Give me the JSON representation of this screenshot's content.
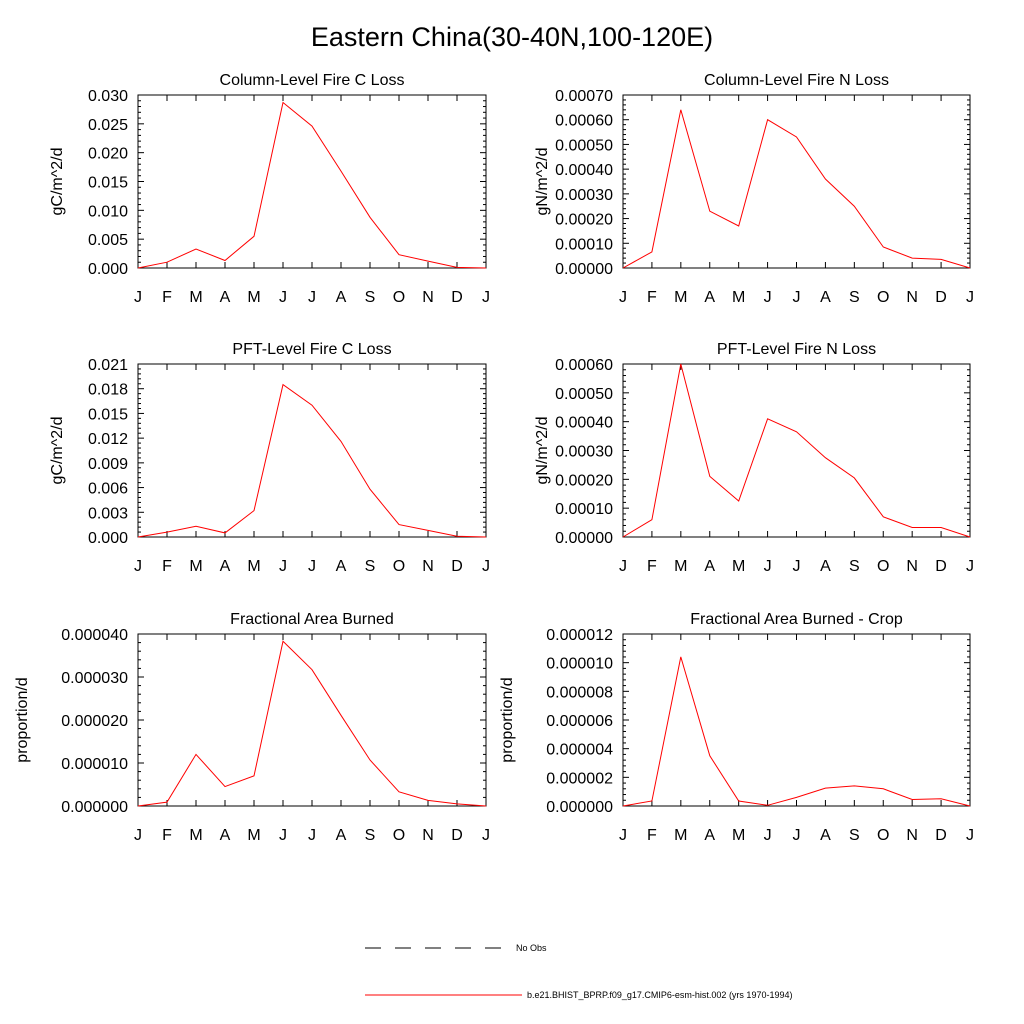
{
  "title": "Eastern China(30-40N,100-120E)",
  "colors": {
    "series": "#ff0000",
    "axis": "#000000",
    "obs": "#000000"
  },
  "legend": {
    "obs_label": "No Obs",
    "model_label": "b.e21.BHIST_BPRP.f09_g17.CMIP6-esm-hist.002 (yrs 1970-1994)"
  },
  "chart_data": [
    {
      "type": "line",
      "title": "Column-Level Fire C Loss",
      "ylabel": "gC/m^2/d",
      "xlabel": "",
      "categories": [
        "J",
        "F",
        "M",
        "A",
        "M",
        "J",
        "J",
        "A",
        "S",
        "O",
        "N",
        "D",
        "J"
      ],
      "yticks": [
        "0.000",
        "0.005",
        "0.010",
        "0.015",
        "0.020",
        "0.025",
        "0.030"
      ],
      "ylim": [
        0,
        0.03
      ],
      "values": [
        0.0,
        0.001,
        0.0033,
        0.0013,
        0.0055,
        0.0287,
        0.0246,
        0.0168,
        0.0088,
        0.0023,
        0.0012,
        0.0001,
        0.0
      ]
    },
    {
      "type": "line",
      "title": "Column-Level Fire N Loss",
      "ylabel": "gN/m^2/d",
      "xlabel": "",
      "categories": [
        "J",
        "F",
        "M",
        "A",
        "M",
        "J",
        "J",
        "A",
        "S",
        "O",
        "N",
        "D",
        "J"
      ],
      "yticks": [
        "0.00000",
        "0.00010",
        "0.00020",
        "0.00030",
        "0.00040",
        "0.00050",
        "0.00060",
        "0.00070"
      ],
      "ylim": [
        0,
        0.0007
      ],
      "values": [
        0.0,
        6.5e-05,
        0.00064,
        0.00023,
        0.00017,
        0.0006,
        0.00053,
        0.00036,
        0.00025,
        8.5e-05,
        4e-05,
        3.5e-05,
        0.0
      ]
    },
    {
      "type": "line",
      "title": "PFT-Level Fire C Loss",
      "ylabel": "gC/m^2/d",
      "xlabel": "",
      "categories": [
        "J",
        "F",
        "M",
        "A",
        "M",
        "J",
        "J",
        "A",
        "S",
        "O",
        "N",
        "D",
        "J"
      ],
      "yticks": [
        "0.000",
        "0.003",
        "0.006",
        "0.009",
        "0.012",
        "0.015",
        "0.018",
        "0.021"
      ],
      "ylim": [
        0,
        0.021
      ],
      "values": [
        0.0,
        0.0006,
        0.0013,
        0.0005,
        0.0032,
        0.0185,
        0.016,
        0.0116,
        0.0058,
        0.0015,
        0.0008,
        0.0001,
        0.0
      ]
    },
    {
      "type": "line",
      "title": "PFT-Level Fire N Loss",
      "ylabel": "gN/m^2/d",
      "xlabel": "",
      "categories": [
        "J",
        "F",
        "M",
        "A",
        "M",
        "J",
        "J",
        "A",
        "S",
        "O",
        "N",
        "D",
        "J"
      ],
      "yticks": [
        "0.00000",
        "0.00010",
        "0.00020",
        "0.00030",
        "0.00040",
        "0.00050",
        "0.00060"
      ],
      "ylim": [
        0,
        0.0006
      ],
      "values": [
        0.0,
        6e-05,
        0.0006,
        0.00021,
        0.000125,
        0.00041,
        0.000365,
        0.000275,
        0.000205,
        7e-05,
        3.3e-05,
        3.3e-05,
        0.0
      ]
    },
    {
      "type": "line",
      "title": "Fractional Area Burned",
      "ylabel": "proportion/d",
      "xlabel": "",
      "categories": [
        "J",
        "F",
        "M",
        "A",
        "M",
        "J",
        "J",
        "A",
        "S",
        "O",
        "N",
        "D",
        "J"
      ],
      "yticks": [
        "0.000000",
        "0.000010",
        "0.000020",
        "0.000030",
        "0.000040"
      ],
      "ylim": [
        0,
        4e-05
      ],
      "values": [
        0.0,
        9e-07,
        1.2e-05,
        4.5e-06,
        7e-06,
        3.83e-05,
        3.17e-05,
        2.11e-05,
        1.07e-05,
        3.3e-06,
        1.3e-06,
        5e-07,
        0.0
      ]
    },
    {
      "type": "line",
      "title": "Fractional Area Burned - Crop",
      "ylabel": "proportion/d",
      "xlabel": "",
      "categories": [
        "J",
        "F",
        "M",
        "A",
        "M",
        "J",
        "J",
        "A",
        "S",
        "O",
        "N",
        "D",
        "J"
      ],
      "yticks": [
        "0.000000",
        "0.000002",
        "0.000004",
        "0.000006",
        "0.000008",
        "0.000010",
        "0.000012"
      ],
      "ylim": [
        0,
        1.2e-05
      ],
      "values": [
        0.0,
        3.5e-07,
        1.04e-05,
        3.5e-06,
        3.5e-07,
        5e-08,
        6e-07,
        1.25e-06,
        1.4e-06,
        1.2e-06,
        4.5e-07,
        5e-07,
        0.0
      ]
    }
  ]
}
